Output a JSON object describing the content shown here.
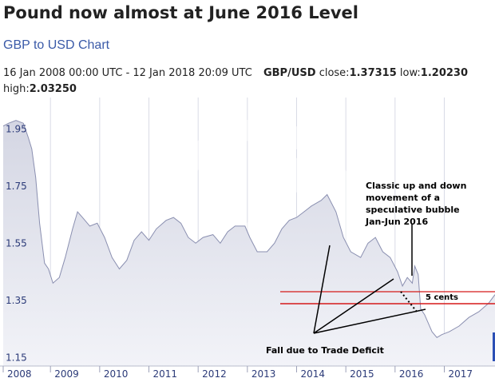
{
  "header": {
    "title": "Pound now almost at June 2016 Level",
    "subtitle": "GBP to USD Chart",
    "date_range": "16 Jan 2008 00:00 UTC - 12 Jan 2018 20:09 UTC",
    "pair": "GBP/USD",
    "close_label": "close:",
    "close_value": "1.37315",
    "low_label": "low:",
    "low_value": "1.20230",
    "high_label": "high:",
    "high_value": "2.03250"
  },
  "chart_data": {
    "type": "area",
    "xlim": [
      2008.04,
      2018.03
    ],
    "ylim": [
      1.12,
      2.06
    ],
    "yticks": [
      1.15,
      1.35,
      1.55,
      1.75,
      1.95
    ],
    "ytick_labels": [
      "1.15",
      "1.35",
      "1.55",
      "1.75",
      "1.95"
    ],
    "xticks": [
      2008,
      2009,
      2010,
      2011,
      2012,
      2013,
      2014,
      2015,
      2016,
      2017
    ],
    "xtick_labels": [
      "2008",
      "2009",
      "2010",
      "2011",
      "2012",
      "2013",
      "2014",
      "2015",
      "2016",
      "2017"
    ],
    "series": [
      {
        "x": [
          2008.04,
          2008.15,
          2008.3,
          2008.45,
          2008.55,
          2008.62,
          2008.7,
          2008.78,
          2008.88,
          2008.96,
          2009.05,
          2009.18,
          2009.3,
          2009.45,
          2009.55,
          2009.65,
          2009.8,
          2009.95,
          2010.1,
          2010.25,
          2010.4,
          2010.55,
          2010.7,
          2010.85,
          2011.0,
          2011.15,
          2011.35,
          2011.5,
          2011.65,
          2011.8,
          2011.95,
          2012.1,
          2012.3,
          2012.45,
          2012.6,
          2012.75,
          2012.95,
          2013.05,
          2013.2,
          2013.4,
          2013.55,
          2013.7,
          2013.85,
          2014.0,
          2014.15,
          2014.3,
          2014.5,
          2014.62,
          2014.8,
          2014.95,
          2015.1,
          2015.3,
          2015.45,
          2015.6,
          2015.75,
          2015.9,
          2016.05,
          2016.15,
          2016.25,
          2016.35,
          2016.4,
          2016.47,
          2016.52,
          2016.6,
          2016.75,
          2016.85,
          2016.95,
          2017.1,
          2017.3,
          2017.5,
          2017.7,
          2017.9,
          2018.03
        ],
        "y": [
          1.96,
          1.97,
          1.98,
          1.97,
          1.92,
          1.88,
          1.78,
          1.62,
          1.48,
          1.46,
          1.41,
          1.43,
          1.5,
          1.6,
          1.66,
          1.64,
          1.61,
          1.62,
          1.57,
          1.5,
          1.46,
          1.49,
          1.56,
          1.59,
          1.56,
          1.6,
          1.63,
          1.64,
          1.62,
          1.57,
          1.55,
          1.57,
          1.58,
          1.55,
          1.59,
          1.61,
          1.61,
          1.57,
          1.52,
          1.52,
          1.55,
          1.6,
          1.63,
          1.64,
          1.66,
          1.68,
          1.7,
          1.72,
          1.66,
          1.57,
          1.52,
          1.5,
          1.55,
          1.57,
          1.52,
          1.5,
          1.45,
          1.4,
          1.43,
          1.41,
          1.47,
          1.44,
          1.32,
          1.3,
          1.24,
          1.22,
          1.23,
          1.24,
          1.26,
          1.29,
          1.31,
          1.34,
          1.37
        ]
      }
    ],
    "annotations": {
      "bubble_text": [
        "Classic up and down",
        "movement of a",
        "speculative bubble",
        "Jan-Jun 2016"
      ],
      "gap_label": "5 cents",
      "fall_text": "Fall due to Trade Deficit"
    },
    "colors": {
      "area_fill_top": "#d4d6e3",
      "area_fill_bottom": "#f2f3f8",
      "line": "#8a8fb0",
      "grid": "#d9dbe6",
      "red_lines": "#d51a1a",
      "annotation": "#000000",
      "axis_text": "#2b3a78"
    }
  }
}
